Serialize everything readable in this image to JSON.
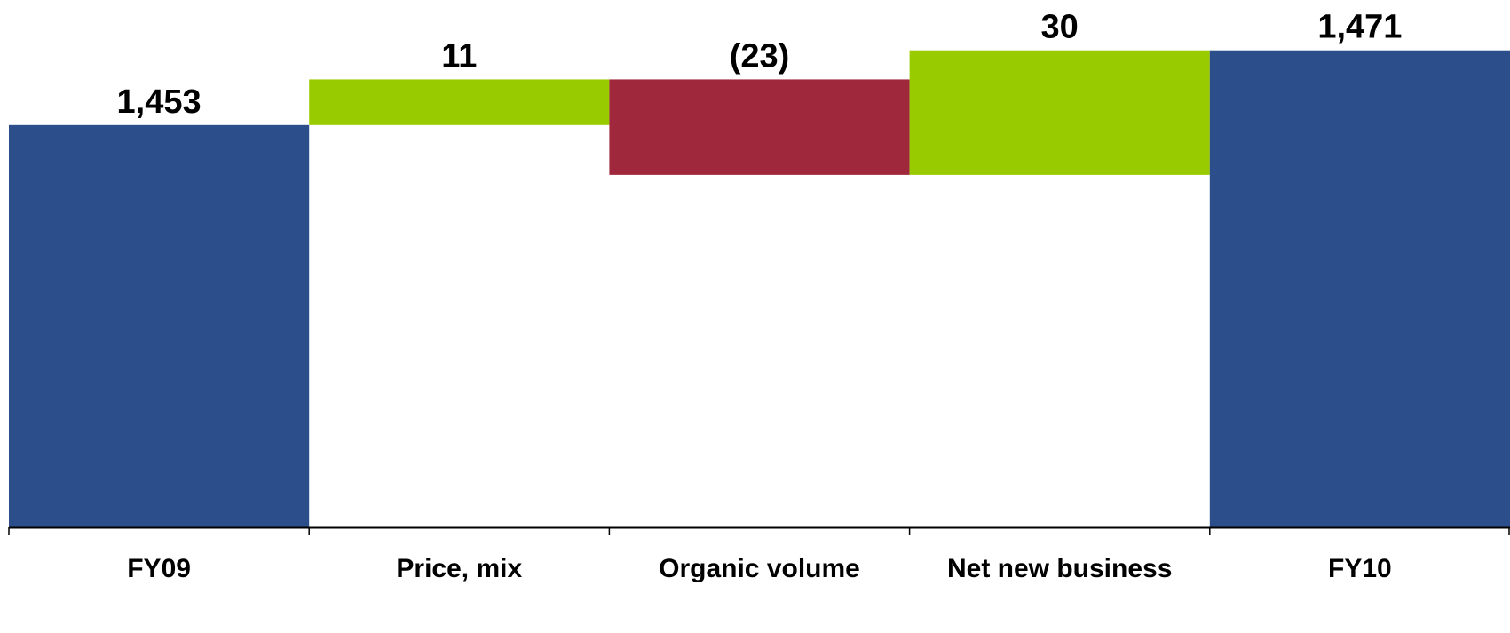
{
  "chart_data": {
    "type": "waterfall",
    "title": "",
    "xlabel": "",
    "ylabel": "",
    "grid": false,
    "legend": "none",
    "ylim": [
      1356,
      1481
    ],
    "categories": [
      "FY09",
      "Price, mix",
      "Organic volume",
      "Net new business",
      "FY10"
    ],
    "steps": [
      {
        "category": "FY09",
        "kind": "total",
        "value": 1453,
        "label": "1,453",
        "color": "#2C4F8B"
      },
      {
        "category": "Price, mix",
        "kind": "increase",
        "value": 11,
        "label": "11",
        "color": "#99CC00"
      },
      {
        "category": "Organic volume",
        "kind": "decrease",
        "value": -23,
        "label": "(23)",
        "color": "#A0283C"
      },
      {
        "category": "Net new business",
        "kind": "increase",
        "value": 30,
        "label": "30",
        "color": "#99CC00"
      },
      {
        "category": "FY10",
        "kind": "total",
        "value": 1471,
        "label": "1,471",
        "color": "#2C4F8B"
      }
    ],
    "colors": {
      "total": "#2C4F8B",
      "increase": "#99CC00",
      "decrease": "#A0283C",
      "axis": "#000000"
    }
  }
}
